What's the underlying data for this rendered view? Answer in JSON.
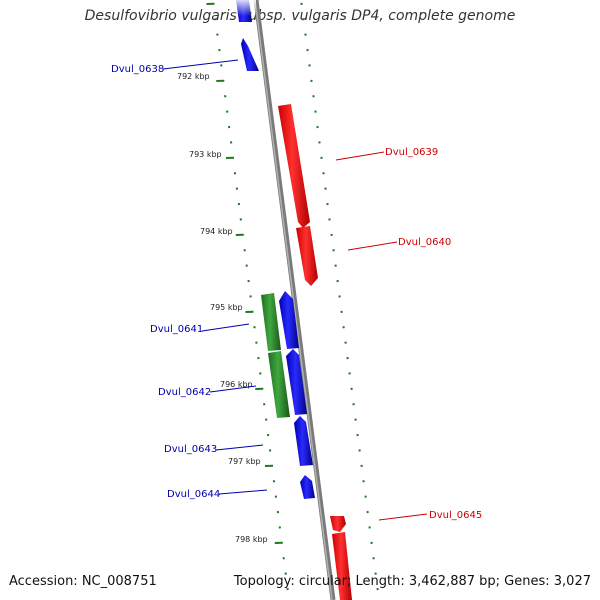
{
  "title": "Desulfovibrio vulgaris subsp. vulgaris DP4, complete genome",
  "accession": "Accession: NC_008751",
  "summary": "Topology: circular; Length: 3,462,887 bp; Genes: 3,027",
  "colors": {
    "forward_gene": "#ff0000",
    "reverse_gene": "#0000e6",
    "other_gene": "#2e8b2e",
    "backbone": "#888888",
    "tick": "#1f7a1f",
    "label_forward": "#cc0000",
    "label_reverse": "#0000aa"
  },
  "ticks": [
    {
      "label": "792 kbp"
    },
    {
      "label": "793 kbp"
    },
    {
      "label": "794 kbp"
    },
    {
      "label": "795 kbp"
    },
    {
      "label": "796 kbp"
    },
    {
      "label": "797 kbp"
    },
    {
      "label": "798 kbp"
    }
  ],
  "genes": [
    {
      "name": "Dvul_0638",
      "strand": "reverse"
    },
    {
      "name": "Dvul_0639",
      "strand": "forward"
    },
    {
      "name": "Dvul_0640",
      "strand": "forward"
    },
    {
      "name": "Dvul_0641",
      "strand": "reverse"
    },
    {
      "name": "Dvul_0642",
      "strand": "reverse"
    },
    {
      "name": "Dvul_0643",
      "strand": "reverse"
    },
    {
      "name": "Dvul_0644",
      "strand": "reverse"
    },
    {
      "name": "Dvul_0645",
      "strand": "forward"
    }
  ]
}
